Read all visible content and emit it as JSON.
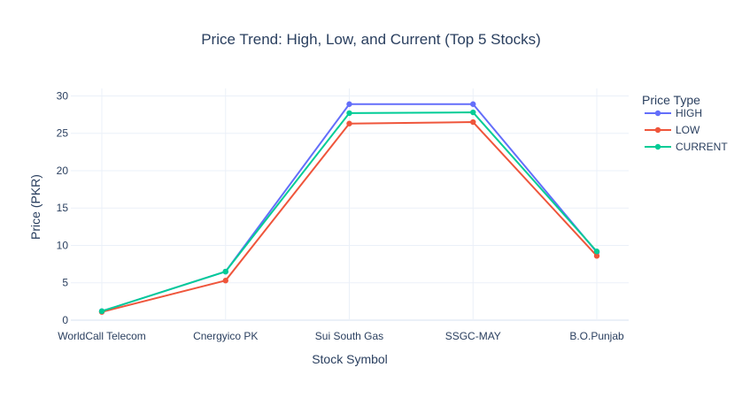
{
  "chart_data": {
    "type": "line",
    "title": "Price Trend: High, Low, and Current (Top 5 Stocks)",
    "xlabel": "Stock Symbol",
    "ylabel": "Price (PKR)",
    "categories": [
      "WorldCall Telecom",
      "Cnergyico PK",
      "Sui South Gas",
      "SSGC-MAY",
      "B.O.Punjab"
    ],
    "ylim": [
      0,
      31
    ],
    "yticks": [
      0,
      5,
      10,
      15,
      20,
      25,
      30
    ],
    "grid": true,
    "legend": {
      "title": "Price Type",
      "position": "top-right"
    },
    "series": [
      {
        "name": "HIGH",
        "color": "#636efa",
        "values": [
          1.2,
          6.5,
          28.9,
          28.9,
          9.1
        ]
      },
      {
        "name": "LOW",
        "color": "#ef553b",
        "values": [
          1.1,
          5.3,
          26.3,
          26.5,
          8.6
        ]
      },
      {
        "name": "CURRENT",
        "color": "#00cc96",
        "values": [
          1.2,
          6.5,
          27.7,
          27.8,
          9.2
        ]
      }
    ]
  }
}
